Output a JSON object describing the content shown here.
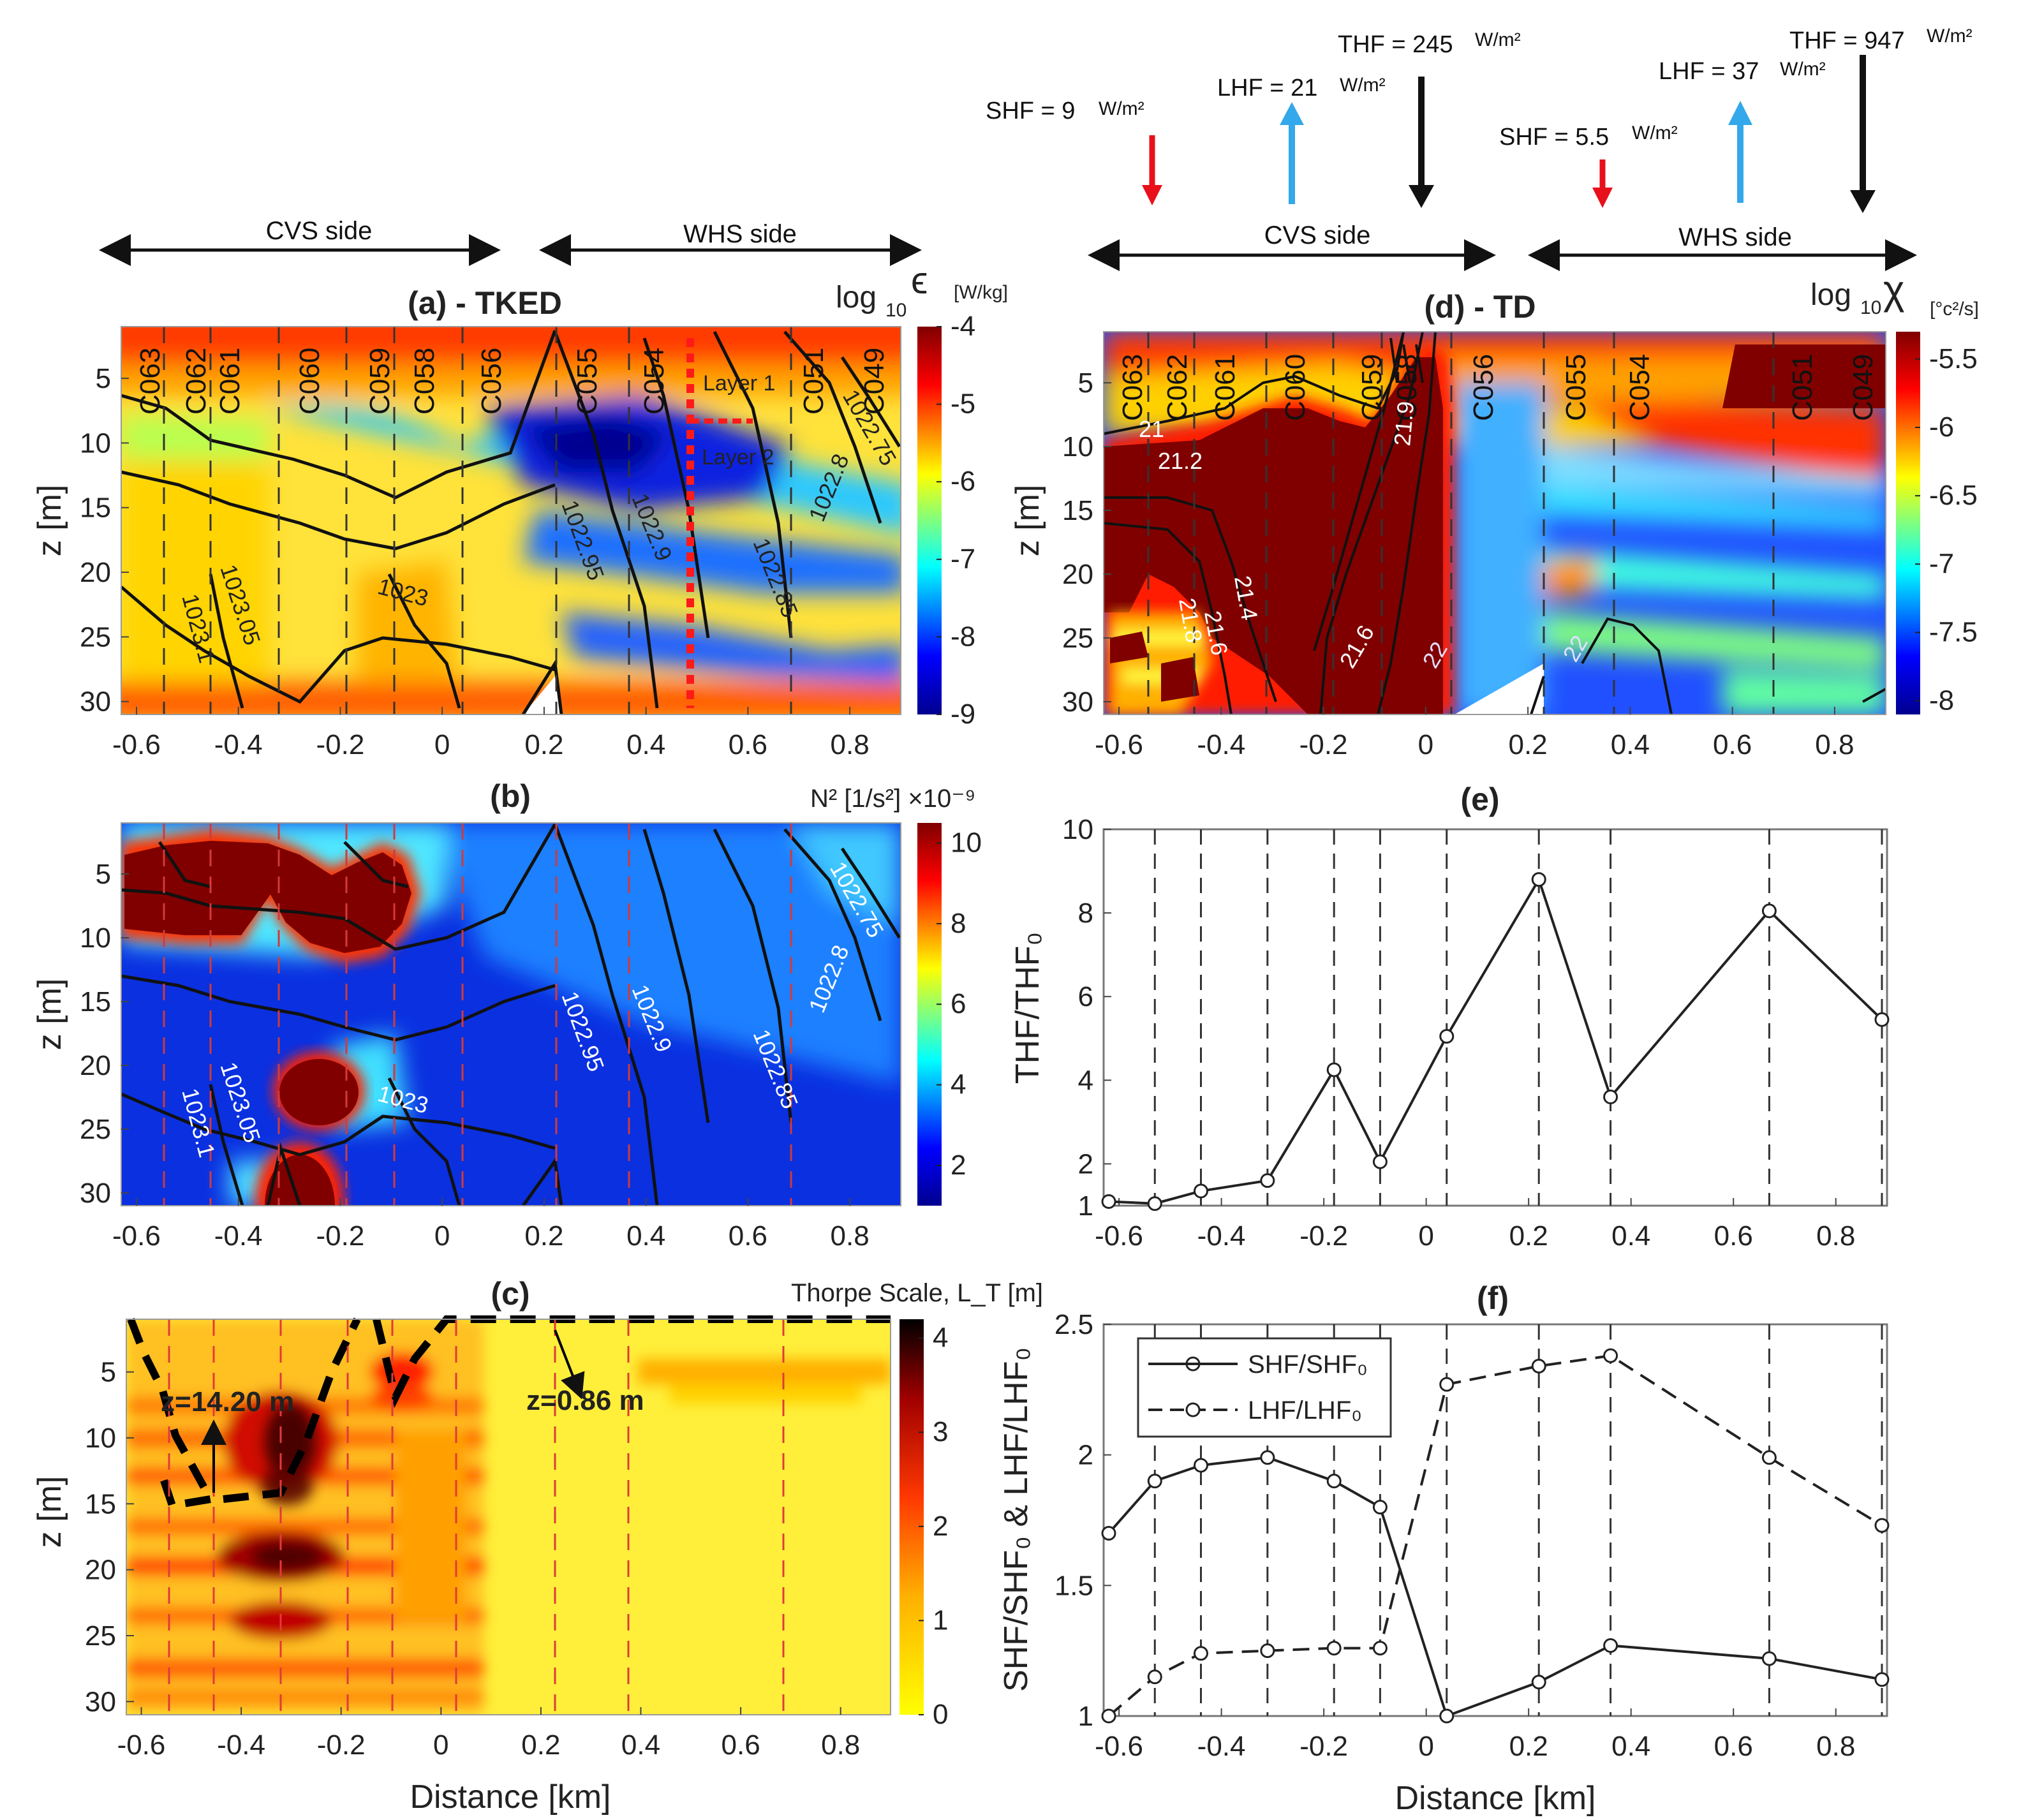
{
  "colors": {
    "jet": [
      "#00008f",
      "#0000ff",
      "#00ffff",
      "#ffff00",
      "#ff0000",
      "#800000"
    ],
    "hot": [
      "#ffff00",
      "#ffb000",
      "#ff3800",
      "#a00000",
      "#000000"
    ],
    "flux_red": "#e8101a",
    "flux_blue": "#33a8ea",
    "flux_black": "#111111",
    "layer_red": "#ff1a1a"
  },
  "top_annotations": {
    "left": {
      "shf": "SHF = 9",
      "lhf": "LHF = 21",
      "thf": "THF = 245",
      "unit": "W/m²",
      "cvs": "CVS side",
      "whs": "WHS side"
    },
    "right": {
      "shf": "SHF = 5.5",
      "lhf": "LHF = 37",
      "thf": "THF = 947",
      "unit": "W/m²",
      "cvs": "CVS side",
      "whs": "WHS side"
    }
  },
  "stations": [
    "C063",
    "C062",
    "C061",
    "C060",
    "C059",
    "C058",
    "C056",
    "C055",
    "C054",
    "C051",
    "C049"
  ],
  "station_distances_km": [
    -0.53,
    -0.44,
    -0.31,
    -0.18,
    -0.09,
    0.04,
    0.22,
    0.36,
    0.67,
    0.89,
    0.89
  ],
  "density_contour_labels": [
    "1023.1",
    "1023.05",
    "1023",
    "1022.95",
    "1022.9",
    "1022.85",
    "1022.8",
    "1022.75"
  ],
  "temperature_contour_labels": [
    "21",
    "21.2",
    "21.4",
    "21.6",
    "21.8",
    "21.6",
    "21.9",
    "22",
    "22"
  ],
  "layers": {
    "layer1": "Layer 1",
    "layer2": "Layer 2"
  },
  "thorpe_annotations": {
    "left": "z=14.20 m",
    "right": "z=0.86 m"
  },
  "chart_data": [
    {
      "id": "a",
      "type": "heatmap",
      "title": "(a) - TKED",
      "colorbar_label": "log10 ε",
      "colorbar_prefix": "log",
      "colorbar_sub": "10",
      "colorbar_symbol": "ϵ",
      "colorbar_unit": "[W/kg]",
      "colorbar_ticks": [
        "-4",
        "-5",
        "-6",
        "-7",
        "-8",
        "-9"
      ],
      "colorbar_range": [
        -9,
        -4
      ],
      "ylabel": "z [m]",
      "xlabel": "",
      "x_ticks": [
        "-0.6",
        "-0.4",
        "-0.2",
        "0",
        "0.2",
        "0.4",
        "0.6",
        "0.8"
      ],
      "y_ticks": [
        "5",
        "10",
        "15",
        "20",
        "25",
        "30"
      ],
      "xlim": [
        -0.63,
        0.9
      ],
      "ylim": [
        31,
        1
      ]
    },
    {
      "id": "b",
      "type": "heatmap",
      "title": "(b)",
      "colorbar_label": "N² [1/s²] ×10⁻⁹",
      "colorbar_ticks": [
        "10",
        "8",
        "6",
        "4",
        "2"
      ],
      "colorbar_range": [
        1,
        10.5
      ],
      "ylabel": "z [m]",
      "xlabel": "",
      "x_ticks": [
        "-0.6",
        "-0.4",
        "-0.2",
        "0",
        "0.2",
        "0.4",
        "0.6",
        "0.8"
      ],
      "y_ticks": [
        "5",
        "10",
        "15",
        "20",
        "25",
        "30"
      ],
      "xlim": [
        -0.63,
        0.9
      ],
      "ylim": [
        31,
        1
      ]
    },
    {
      "id": "c",
      "type": "heatmap",
      "title": "(c)",
      "colorbar_label": "Thorpe Scale, L_T [m]",
      "colorbar_ticks": [
        "4",
        "3",
        "2",
        "1",
        "0"
      ],
      "colorbar_range": [
        0,
        4.2
      ],
      "ylabel": "z [m]",
      "xlabel": "Distance [km]",
      "x_ticks": [
        "-0.6",
        "-0.4",
        "-0.2",
        "0",
        "0.2",
        "0.4",
        "0.6",
        "0.8"
      ],
      "y_ticks": [
        "5",
        "10",
        "15",
        "20",
        "25",
        "30"
      ],
      "xlim": [
        -0.63,
        0.9
      ],
      "ylim": [
        31,
        1
      ]
    },
    {
      "id": "d",
      "type": "heatmap",
      "title": "(d) - TD",
      "colorbar_label": "log10 χ [°c²/s]",
      "colorbar_prefix": "log",
      "colorbar_sub": "10",
      "colorbar_symbol": "χ",
      "colorbar_unit": "[°c²/s]",
      "colorbar_ticks": [
        "-5.5",
        "-6",
        "-6.5",
        "-7",
        "-7.5",
        "-8"
      ],
      "colorbar_range": [
        -8.1,
        -5.3
      ],
      "ylabel": "z [m]",
      "xlabel": "",
      "x_ticks": [
        "-0.6",
        "-0.4",
        "-0.2",
        "0",
        "0.2",
        "0.4",
        "0.6",
        "0.8"
      ],
      "y_ticks": [
        "5",
        "10",
        "15",
        "20",
        "25",
        "30"
      ],
      "xlim": [
        -0.63,
        0.9
      ],
      "ylim": [
        31,
        1
      ]
    },
    {
      "id": "e",
      "type": "line",
      "title": "(e)",
      "ylabel": "THF/THF₀",
      "xlabel": "",
      "x_ticks": [
        "-0.6",
        "-0.4",
        "-0.2",
        "0",
        "0.2",
        "0.4",
        "0.6",
        "0.8"
      ],
      "y_ticks": [
        "1",
        "2",
        "4",
        "6",
        "8",
        "10"
      ],
      "xlim": [
        -0.63,
        0.9
      ],
      "ylim": [
        1,
        10
      ],
      "x": [
        -0.62,
        -0.53,
        -0.44,
        -0.31,
        -0.18,
        -0.09,
        0.04,
        0.22,
        0.36,
        0.67,
        0.89
      ],
      "series": [
        {
          "name": "THF/THF0",
          "values": [
            1.1,
            1.05,
            1.35,
            1.6,
            4.25,
            2.05,
            5.05,
            8.8,
            3.6,
            8.05,
            5.45
          ]
        }
      ]
    },
    {
      "id": "f",
      "type": "line",
      "title": "(f)",
      "ylabel": "SHF/SHF₀ & LHF/LHF₀",
      "xlabel": "Distance [km]",
      "x_ticks": [
        "-0.6",
        "-0.4",
        "-0.2",
        "0",
        "0.2",
        "0.4",
        "0.6",
        "0.8"
      ],
      "y_ticks": [
        "1",
        "1.5",
        "2",
        "2.5"
      ],
      "xlim": [
        -0.63,
        0.9
      ],
      "ylim": [
        1,
        2.5
      ],
      "x": [
        -0.62,
        -0.53,
        -0.44,
        -0.31,
        -0.18,
        -0.09,
        0.04,
        0.22,
        0.36,
        0.67,
        0.89
      ],
      "legend": [
        "SHF/SHF₀",
        "LHF/LHF₀"
      ],
      "series": [
        {
          "name": "SHF/SHF0",
          "style": "solid",
          "values": [
            1.7,
            1.9,
            1.96,
            1.99,
            1.9,
            1.8,
            1.0,
            1.13,
            1.27,
            1.22,
            1.14
          ]
        },
        {
          "name": "LHF/LHF0",
          "style": "dashed",
          "values": [
            1.0,
            1.15,
            1.24,
            1.25,
            1.26,
            1.26,
            2.27,
            2.34,
            2.38,
            1.99,
            1.73
          ]
        }
      ]
    }
  ]
}
